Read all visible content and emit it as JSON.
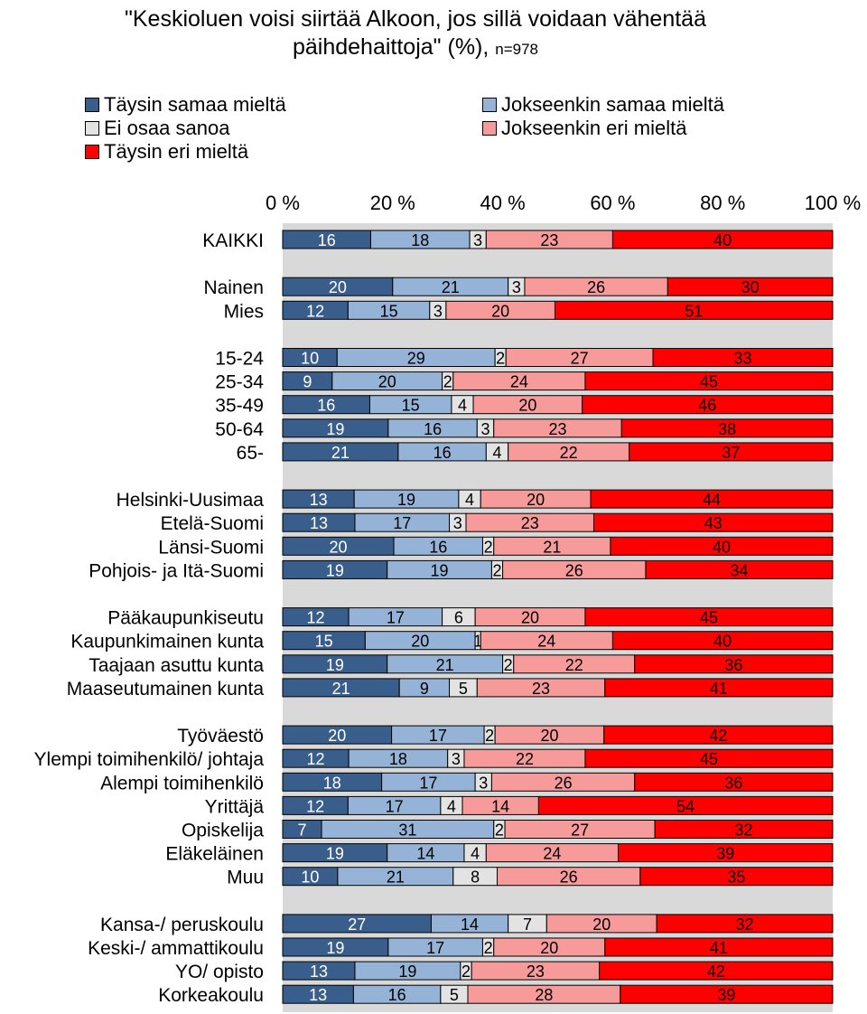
{
  "title": {
    "main_line1": "\"Keskioluen voisi siirtää Alkoon, jos sillä voidaan vähentää",
    "main_line2": "päihdehaittoja\" (%), ",
    "n_label": "n=978"
  },
  "colors": {
    "taysin_samaa": "#3a5e8c",
    "jokseenkin_samaa": "#95b3d7",
    "ei_osaa": "#e3e3e3",
    "jokseenkin_eri": "#f79a9a",
    "taysin_eri": "#ff0000",
    "plot_background": "#d9d9d9"
  },
  "chart_data": {
    "type": "bar",
    "orientation": "horizontal",
    "stacked": true,
    "percent_stacked": true,
    "xlim": [
      0,
      100
    ],
    "x_ticks": [
      "0 %",
      "20 %",
      "40 %",
      "60 %",
      "80 %",
      "100 %"
    ],
    "legend_position": "top",
    "series": [
      {
        "name": "Täysin samaa mieltä"
      },
      {
        "name": "Jokseenkin samaa mieltä"
      },
      {
        "name": "Ei osaa sanoa"
      },
      {
        "name": "Jokseenkin eri mieltä"
      },
      {
        "name": "Täysin eri mieltä"
      }
    ],
    "groups": [
      [
        {
          "label": "KAIKKI",
          "values": [
            16,
            18,
            3,
            23,
            40
          ]
        }
      ],
      [
        {
          "label": "Nainen",
          "values": [
            20,
            21,
            3,
            26,
            30
          ]
        },
        {
          "label": "Mies",
          "values": [
            12,
            15,
            3,
            20,
            51
          ]
        }
      ],
      [
        {
          "label": "15-24",
          "values": [
            10,
            29,
            2,
            27,
            33
          ]
        },
        {
          "label": "25-34",
          "values": [
            9,
            20,
            2,
            24,
            45
          ]
        },
        {
          "label": "35-49",
          "values": [
            16,
            15,
            4,
            20,
            46
          ]
        },
        {
          "label": "50-64",
          "values": [
            19,
            16,
            3,
            23,
            38
          ]
        },
        {
          "label": "65-",
          "values": [
            21,
            16,
            4,
            22,
            37
          ]
        }
      ],
      [
        {
          "label": "Helsinki-Uusimaa",
          "values": [
            13,
            19,
            4,
            20,
            44
          ]
        },
        {
          "label": "Etelä-Suomi",
          "values": [
            13,
            17,
            3,
            23,
            43
          ]
        },
        {
          "label": "Länsi-Suomi",
          "values": [
            20,
            16,
            2,
            21,
            40
          ]
        },
        {
          "label": "Pohjois- ja Itä-Suomi",
          "values": [
            19,
            19,
            2,
            26,
            34
          ]
        }
      ],
      [
        {
          "label": "Pääkaupunkiseutu",
          "values": [
            12,
            17,
            6,
            20,
            45
          ]
        },
        {
          "label": "Kaupunkimainen kunta",
          "values": [
            15,
            20,
            1,
            24,
            40
          ]
        },
        {
          "label": "Taajaan asuttu kunta",
          "values": [
            19,
            21,
            2,
            22,
            36
          ]
        },
        {
          "label": "Maaseutumainen kunta",
          "values": [
            21,
            9,
            5,
            23,
            41
          ]
        }
      ],
      [
        {
          "label": "Työväestö",
          "values": [
            20,
            17,
            2,
            20,
            42
          ]
        },
        {
          "label": "Ylempi toimihenkilö/ johtaja",
          "values": [
            12,
            18,
            3,
            22,
            45
          ]
        },
        {
          "label": "Alempi toimihenkilö",
          "values": [
            18,
            17,
            3,
            26,
            36
          ]
        },
        {
          "label": "Yrittäjä",
          "values": [
            12,
            17,
            4,
            14,
            54
          ]
        },
        {
          "label": "Opiskelija",
          "values": [
            7,
            31,
            2,
            27,
            32
          ]
        },
        {
          "label": "Eläkeläinen",
          "values": [
            19,
            14,
            4,
            24,
            39
          ]
        },
        {
          "label": "Muu",
          "values": [
            10,
            21,
            8,
            26,
            35
          ]
        }
      ],
      [
        {
          "label": "Kansa-/ peruskoulu",
          "values": [
            27,
            14,
            7,
            20,
            32
          ]
        },
        {
          "label": "Keski-/ ammattikoulu",
          "values": [
            19,
            17,
            2,
            20,
            41
          ]
        },
        {
          "label": "YO/ opisto",
          "values": [
            13,
            19,
            2,
            23,
            42
          ]
        },
        {
          "label": "Korkeakoulu",
          "values": [
            13,
            16,
            5,
            28,
            39
          ]
        }
      ]
    ]
  }
}
